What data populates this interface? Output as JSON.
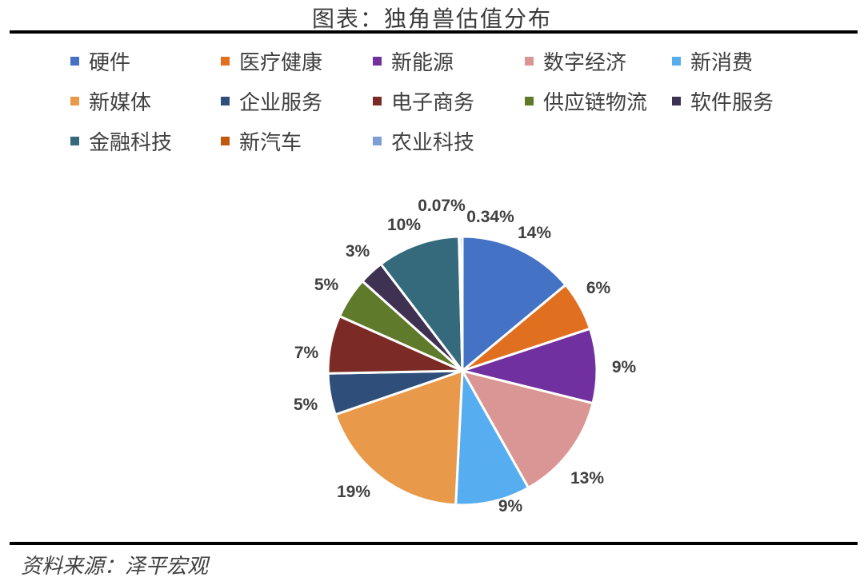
{
  "header": {
    "title": "图表：独角兽估值分布"
  },
  "footer": {
    "source": "资料来源：泽平宏观"
  },
  "chart_data": {
    "type": "pie",
    "title": "图表：独角兽估值分布",
    "legend_position": "top",
    "categories": [
      "硬件",
      "医疗健康",
      "新能源",
      "数字经济",
      "新消费",
      "新媒体",
      "企业服务",
      "电子商务",
      "供应链物流",
      "软件服务",
      "金融科技",
      "新汽车",
      "农业科技"
    ],
    "values": [
      14,
      6,
      9,
      13,
      9,
      19,
      5,
      7,
      5,
      3,
      10,
      0.07,
      0.34
    ],
    "labels": [
      "14%",
      "6%",
      "9%",
      "13%",
      "9%",
      "19%",
      "5%",
      "7%",
      "5%",
      "3%",
      "10%",
      "0.07%",
      "0.34%"
    ],
    "colors": [
      "#4472c4",
      "#e07020",
      "#7030a0",
      "#d99694",
      "#56aef0",
      "#e8994a",
      "#2f4e7a",
      "#7b2a25",
      "#5e7a2a",
      "#3f3152",
      "#356a7c",
      "#c05a10",
      "#7e9fd6"
    ]
  }
}
